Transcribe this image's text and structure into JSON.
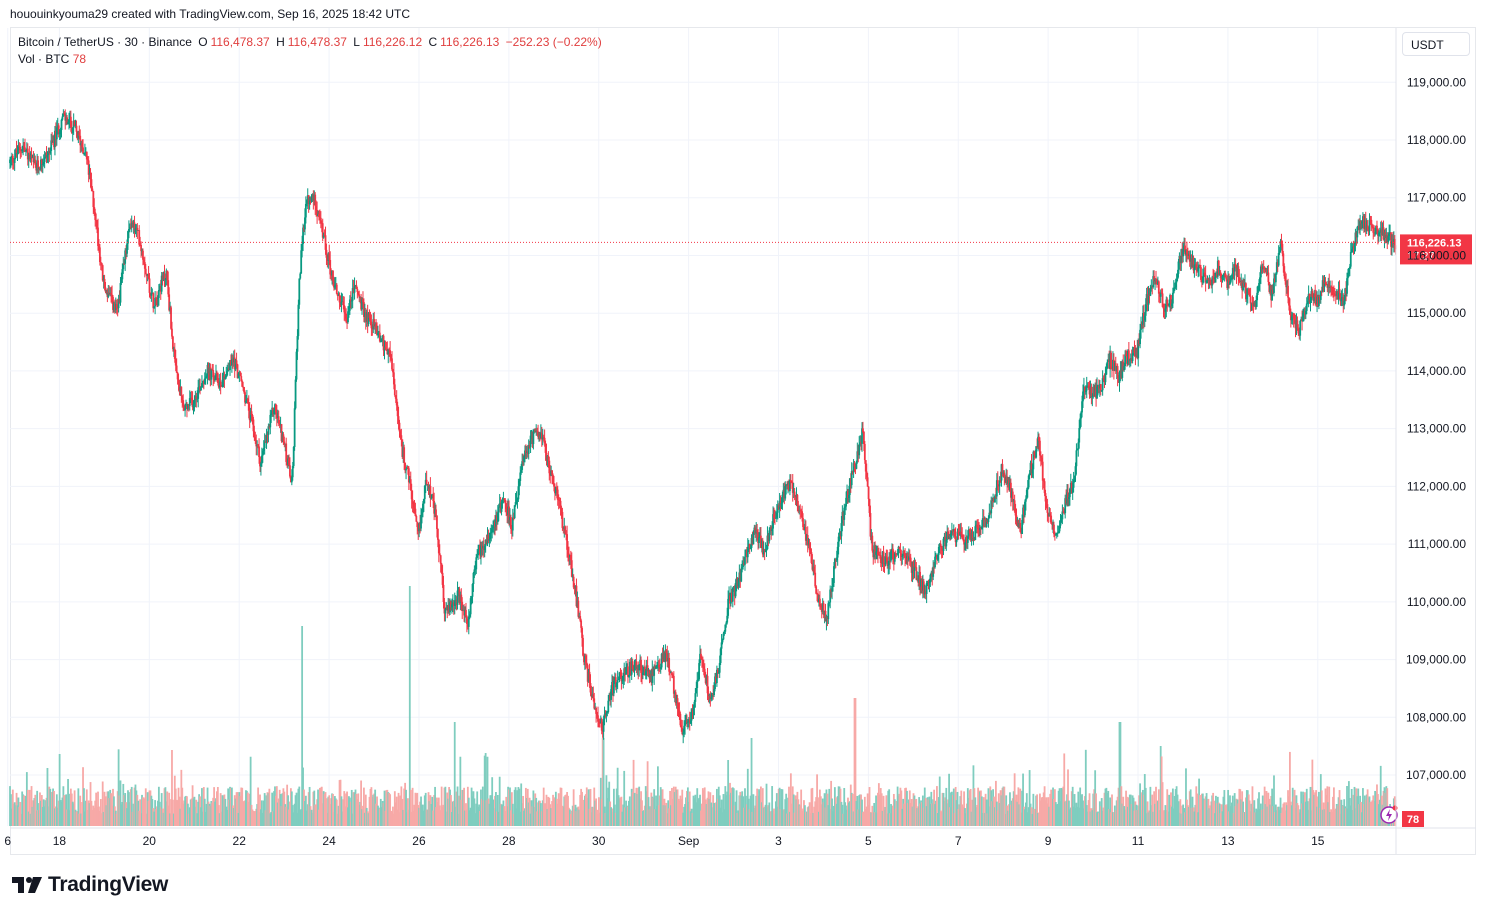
{
  "header": {
    "attribution": "hououinkyouma29 created with TradingView.com, Sep 16, 2025 18:42 UTC"
  },
  "legend": {
    "symbol": "Bitcoin / TetherUS · 30 · Binance",
    "o_label": "O",
    "o_value": "116,478.37",
    "h_label": "H",
    "h_value": "116,478.37",
    "l_label": "L",
    "l_value": "116,226.12",
    "c_label": "C",
    "c_value": "116,226.13",
    "change": "−252.23 (−0.22%)",
    "vol_label": "Vol · BTC",
    "vol_value": "78"
  },
  "toolbar": {
    "currency_button": "USDT"
  },
  "price_marker": {
    "price": "116,226.13",
    "countdown": "17:27",
    "color": "#f23645"
  },
  "volume_marker": {
    "value": "78"
  },
  "brand": {
    "name": "TradingView"
  },
  "colors": {
    "up": "#089981",
    "down": "#f23645",
    "up_volume": "#7fcdbf",
    "down_volume": "#f7a9a7"
  },
  "chart_data": {
    "type": "candlestick",
    "title": "Bitcoin / TetherUS · 30 · Binance",
    "xlabel": "",
    "ylabel": "",
    "ylim": [
      106300,
      119900
    ],
    "grid": true,
    "y_ticks": [
      "119,000.00",
      "118,000.00",
      "117,000.00",
      "116,000.00",
      "115,000.00",
      "114,000.00",
      "113,000.00",
      "112,000.00",
      "111,000.00",
      "110,000.00",
      "109,000.00",
      "108,000.00",
      "107,000.00"
    ],
    "y_tick_values": [
      119000,
      118000,
      117000,
      116000,
      115000,
      114000,
      113000,
      112000,
      111000,
      110000,
      109000,
      108000,
      107000
    ],
    "x_ticks": [
      "6",
      "18",
      "20",
      "22",
      "24",
      "26",
      "28",
      "30",
      "Sep",
      "3",
      "5",
      "7",
      "9",
      "11",
      "13",
      "15"
    ],
    "x_tick_days": [
      15.85,
      17,
      19,
      21,
      23,
      25,
      27,
      29,
      31,
      33,
      35,
      37,
      39,
      41,
      43,
      45
    ],
    "x_range_days": [
      15.9,
      46.74
    ],
    "last_price": 116226.13,
    "path": [
      {
        "d": 15.9,
        "p": 117600
      },
      {
        "d": 16.2,
        "p": 117900
      },
      {
        "d": 16.5,
        "p": 117500
      },
      {
        "d": 16.8,
        "p": 117800
      },
      {
        "d": 17.1,
        "p": 118400
      },
      {
        "d": 17.35,
        "p": 118200
      },
      {
        "d": 17.6,
        "p": 117800
      },
      {
        "d": 17.8,
        "p": 116800
      },
      {
        "d": 18.0,
        "p": 115500
      },
      {
        "d": 18.3,
        "p": 115000
      },
      {
        "d": 18.6,
        "p": 116600
      },
      {
        "d": 18.8,
        "p": 116300
      },
      {
        "d": 19.1,
        "p": 115200
      },
      {
        "d": 19.4,
        "p": 115700
      },
      {
        "d": 19.6,
        "p": 114000
      },
      {
        "d": 19.8,
        "p": 113300
      },
      {
        "d": 20.0,
        "p": 113500
      },
      {
        "d": 20.3,
        "p": 114000
      },
      {
        "d": 20.6,
        "p": 113800
      },
      {
        "d": 20.9,
        "p": 114200
      },
      {
        "d": 21.1,
        "p": 113700
      },
      {
        "d": 21.3,
        "p": 113100
      },
      {
        "d": 21.5,
        "p": 112400
      },
      {
        "d": 21.8,
        "p": 113400
      },
      {
        "d": 22.0,
        "p": 112800
      },
      {
        "d": 22.2,
        "p": 112000
      },
      {
        "d": 22.35,
        "p": 115500
      },
      {
        "d": 22.5,
        "p": 116900
      },
      {
        "d": 22.7,
        "p": 117000
      },
      {
        "d": 22.9,
        "p": 116300
      },
      {
        "d": 23.1,
        "p": 115600
      },
      {
        "d": 23.4,
        "p": 114900
      },
      {
        "d": 23.6,
        "p": 115500
      },
      {
        "d": 23.8,
        "p": 115000
      },
      {
        "d": 24.1,
        "p": 114700
      },
      {
        "d": 24.4,
        "p": 114200
      },
      {
        "d": 24.6,
        "p": 112800
      },
      {
        "d": 24.8,
        "p": 112100
      },
      {
        "d": 25.0,
        "p": 111100
      },
      {
        "d": 25.2,
        "p": 112200
      },
      {
        "d": 25.4,
        "p": 111400
      },
      {
        "d": 25.6,
        "p": 109800
      },
      {
        "d": 25.9,
        "p": 110100
      },
      {
        "d": 26.1,
        "p": 109600
      },
      {
        "d": 26.3,
        "p": 110800
      },
      {
        "d": 26.6,
        "p": 111200
      },
      {
        "d": 26.9,
        "p": 111800
      },
      {
        "d": 27.1,
        "p": 111300
      },
      {
        "d": 27.3,
        "p": 112300
      },
      {
        "d": 27.5,
        "p": 112800
      },
      {
        "d": 27.7,
        "p": 113000
      },
      {
        "d": 27.9,
        "p": 112400
      },
      {
        "d": 28.1,
        "p": 111800
      },
      {
        "d": 28.3,
        "p": 111100
      },
      {
        "d": 28.5,
        "p": 110200
      },
      {
        "d": 28.7,
        "p": 109000
      },
      {
        "d": 28.9,
        "p": 108300
      },
      {
        "d": 29.1,
        "p": 107800
      },
      {
        "d": 29.3,
        "p": 108500
      },
      {
        "d": 29.6,
        "p": 108800
      },
      {
        "d": 29.9,
        "p": 108900
      },
      {
        "d": 30.2,
        "p": 108700
      },
      {
        "d": 30.5,
        "p": 109100
      },
      {
        "d": 30.7,
        "p": 108500
      },
      {
        "d": 30.9,
        "p": 107700
      },
      {
        "d": 31.1,
        "p": 108100
      },
      {
        "d": 31.3,
        "p": 109100
      },
      {
        "d": 31.5,
        "p": 108300
      },
      {
        "d": 31.7,
        "p": 108900
      },
      {
        "d": 31.9,
        "p": 110000
      },
      {
        "d": 32.1,
        "p": 110300
      },
      {
        "d": 32.3,
        "p": 110800
      },
      {
        "d": 32.5,
        "p": 111200
      },
      {
        "d": 32.7,
        "p": 110900
      },
      {
        "d": 32.9,
        "p": 111400
      },
      {
        "d": 33.1,
        "p": 111800
      },
      {
        "d": 33.3,
        "p": 112100
      },
      {
        "d": 33.5,
        "p": 111600
      },
      {
        "d": 33.7,
        "p": 110900
      },
      {
        "d": 33.9,
        "p": 110100
      },
      {
        "d": 34.1,
        "p": 109700
      },
      {
        "d": 34.3,
        "p": 110800
      },
      {
        "d": 34.5,
        "p": 111700
      },
      {
        "d": 34.7,
        "p": 112300
      },
      {
        "d": 34.9,
        "p": 113000
      },
      {
        "d": 35.1,
        "p": 110900
      },
      {
        "d": 35.4,
        "p": 110700
      },
      {
        "d": 35.7,
        "p": 110900
      },
      {
        "d": 36.0,
        "p": 110600
      },
      {
        "d": 36.3,
        "p": 110200
      },
      {
        "d": 36.5,
        "p": 110700
      },
      {
        "d": 36.8,
        "p": 111200
      },
      {
        "d": 37.1,
        "p": 111100
      },
      {
        "d": 37.4,
        "p": 111200
      },
      {
        "d": 37.7,
        "p": 111500
      },
      {
        "d": 38.0,
        "p": 112300
      },
      {
        "d": 38.2,
        "p": 111900
      },
      {
        "d": 38.4,
        "p": 111200
      },
      {
        "d": 38.6,
        "p": 112200
      },
      {
        "d": 38.8,
        "p": 112800
      },
      {
        "d": 39.0,
        "p": 111600
      },
      {
        "d": 39.2,
        "p": 111200
      },
      {
        "d": 39.4,
        "p": 111700
      },
      {
        "d": 39.6,
        "p": 112100
      },
      {
        "d": 39.8,
        "p": 113700
      },
      {
        "d": 40.0,
        "p": 113600
      },
      {
        "d": 40.2,
        "p": 113700
      },
      {
        "d": 40.4,
        "p": 114200
      },
      {
        "d": 40.6,
        "p": 113900
      },
      {
        "d": 40.8,
        "p": 114300
      },
      {
        "d": 41.0,
        "p": 114300
      },
      {
        "d": 41.2,
        "p": 115200
      },
      {
        "d": 41.4,
        "p": 115600
      },
      {
        "d": 41.6,
        "p": 115100
      },
      {
        "d": 41.8,
        "p": 115300
      },
      {
        "d": 42.0,
        "p": 116100
      },
      {
        "d": 42.2,
        "p": 115900
      },
      {
        "d": 42.4,
        "p": 115700
      },
      {
        "d": 42.6,
        "p": 115500
      },
      {
        "d": 42.8,
        "p": 115800
      },
      {
        "d": 43.0,
        "p": 115500
      },
      {
        "d": 43.2,
        "p": 115800
      },
      {
        "d": 43.4,
        "p": 115400
      },
      {
        "d": 43.6,
        "p": 115100
      },
      {
        "d": 43.8,
        "p": 115900
      },
      {
        "d": 44.0,
        "p": 115300
      },
      {
        "d": 44.2,
        "p": 116200
      },
      {
        "d": 44.4,
        "p": 115000
      },
      {
        "d": 44.6,
        "p": 114700
      },
      {
        "d": 44.8,
        "p": 115300
      },
      {
        "d": 45.0,
        "p": 115200
      },
      {
        "d": 45.2,
        "p": 115600
      },
      {
        "d": 45.4,
        "p": 115400
      },
      {
        "d": 45.6,
        "p": 115200
      },
      {
        "d": 45.8,
        "p": 116200
      },
      {
        "d": 46.0,
        "p": 116600
      },
      {
        "d": 46.74,
        "p": 116226
      }
    ],
    "volume_spikes": [
      {
        "d": 17.0,
        "v": 0.9
      },
      {
        "d": 19.5,
        "v": 0.95
      },
      {
        "d": 22.4,
        "v": 2.5
      },
      {
        "d": 24.8,
        "v": 3.0
      },
      {
        "d": 25.8,
        "v": 1.3
      },
      {
        "d": 29.1,
        "v": 1.1
      },
      {
        "d": 32.4,
        "v": 1.1
      },
      {
        "d": 34.7,
        "v": 1.6
      },
      {
        "d": 40.6,
        "v": 1.3
      },
      {
        "d": 41.5,
        "v": 1.0
      }
    ]
  }
}
